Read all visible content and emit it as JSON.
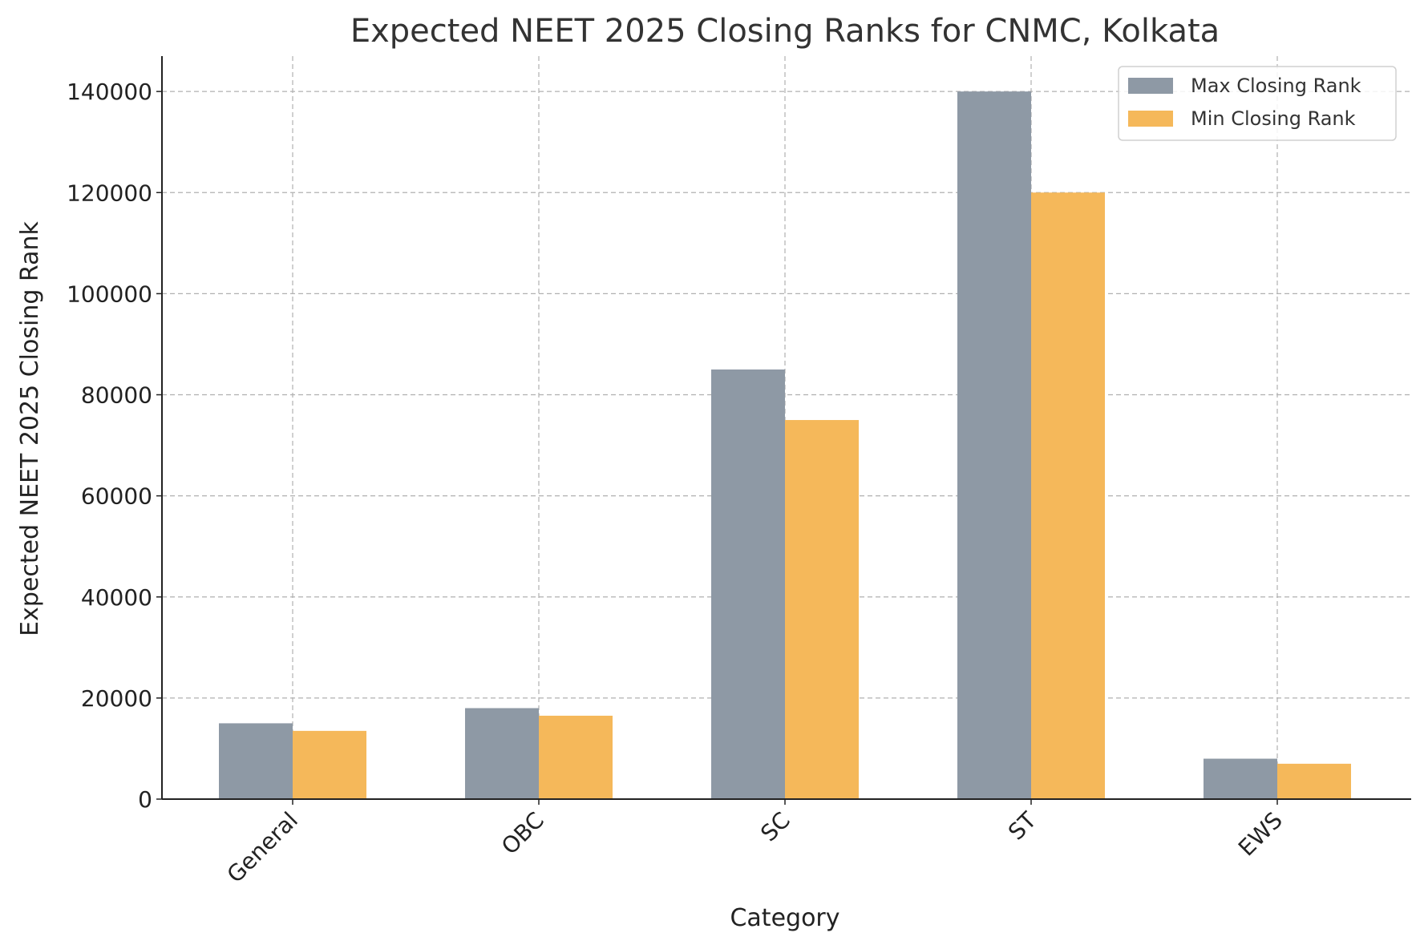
{
  "chart_data": {
    "type": "bar",
    "title": "Expected NEET 2025 Closing Ranks for CNMC, Kolkata",
    "xlabel": "Category",
    "ylabel": "Expected NEET 2025 Closing Rank",
    "categories": [
      "General",
      "OBC",
      "SC",
      "ST",
      "EWS"
    ],
    "series": [
      {
        "name": "Max Closing Rank",
        "color": "#8e99a5",
        "values": [
          15000,
          18000,
          85000,
          140000,
          8000
        ]
      },
      {
        "name": "Min Closing Rank",
        "color": "#f5b85a",
        "values": [
          13500,
          16500,
          75000,
          120000,
          7000
        ]
      }
    ],
    "ylim": [
      0,
      147000
    ],
    "yticks": [
      0,
      20000,
      40000,
      60000,
      80000,
      100000,
      120000,
      140000
    ],
    "grid": true,
    "legend_position": "top-right"
  }
}
